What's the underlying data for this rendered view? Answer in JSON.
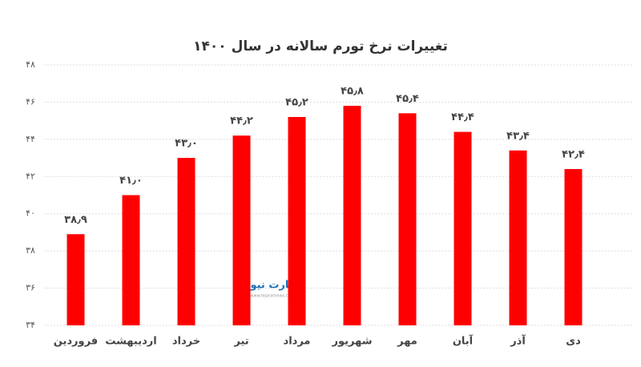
{
  "chart_data": {
    "type": "bar",
    "title": "تغییرات نرخ تورم سالانه در سال ۱۴۰۰",
    "categories": [
      "فروردین",
      "اردیبهشت",
      "خرداد",
      "تیر",
      "مرداد",
      "شهریور",
      "مهر",
      "آبان",
      "آذر",
      "دی"
    ],
    "values": [
      38.9,
      41.0,
      43.0,
      44.2,
      45.2,
      45.8,
      45.4,
      44.4,
      43.4,
      42.4
    ],
    "value_labels": [
      "۳۸٫۹",
      "۴۱٫۰",
      "۴۳٫۰",
      "۴۴٫۲",
      "۴۵٫۲",
      "۴۵٫۸",
      "۴۵٫۴",
      "۴۴٫۴",
      "۴۳٫۴",
      "۴۲٫۴"
    ],
    "color": "#ff0000",
    "ylim": [
      34,
      48
    ],
    "yticks": [
      {
        "value": 34,
        "label": "۳۴"
      },
      {
        "value": 36,
        "label": "۳۶"
      },
      {
        "value": 38,
        "label": "۳۸"
      },
      {
        "value": 40,
        "label": "۴۰"
      },
      {
        "value": 42,
        "label": "۴۲"
      },
      {
        "value": 44,
        "label": "۴۴"
      },
      {
        "value": 46,
        "label": "۴۶"
      },
      {
        "value": 48,
        "label": "۴۸"
      }
    ],
    "grid": true,
    "watermark": {
      "name": "تجارت نیوز",
      "url": "www.tejaratnews.com"
    }
  }
}
